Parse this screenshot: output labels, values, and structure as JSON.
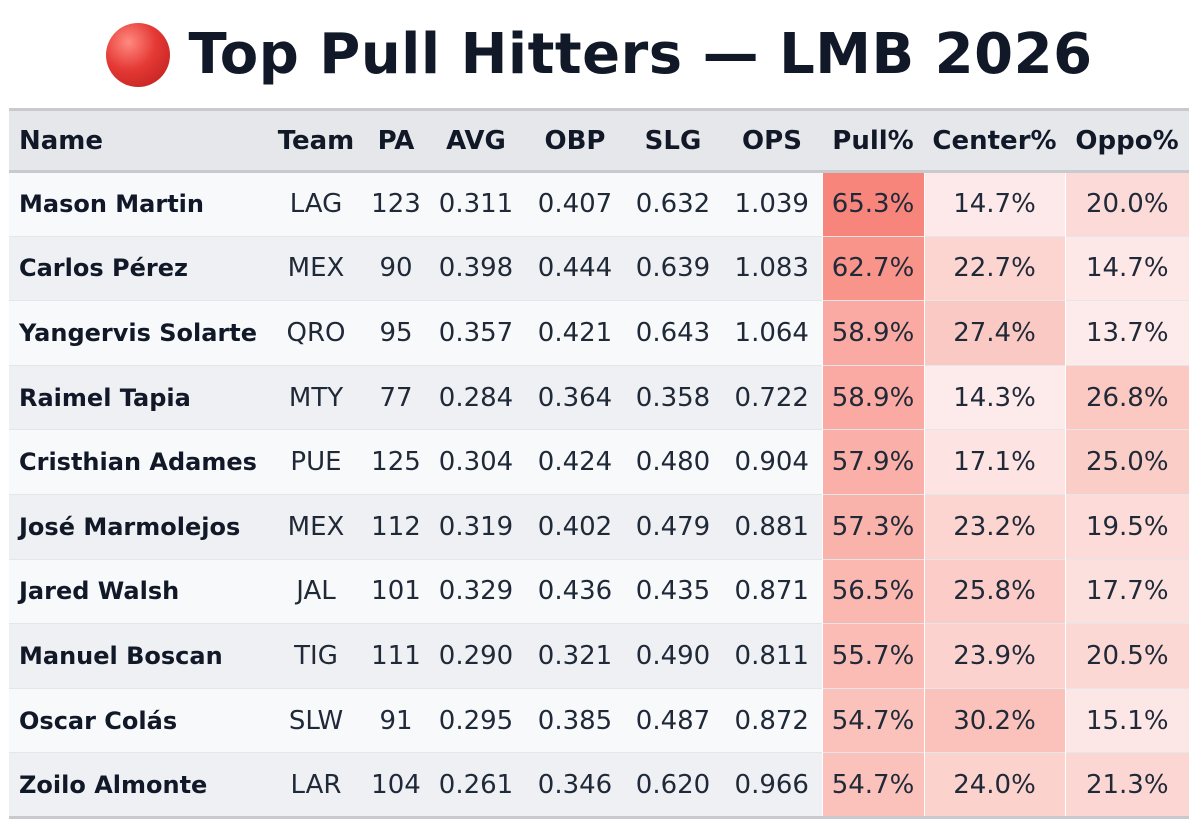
{
  "title": {
    "icon": "red-circle-icon",
    "text": "Top Pull Hitters — LMB 2026"
  },
  "colors": {
    "pull": [
      "#f8857b",
      "#fbc2bb"
    ],
    "center": [
      "#fbc2bb",
      "#fdeaea"
    ],
    "oppo": [
      "#fbc8c2",
      "#fdeaea"
    ]
  },
  "chart_data": {
    "type": "table",
    "columns": [
      "Name",
      "Team",
      "PA",
      "AVG",
      "OBP",
      "SLG",
      "OPS",
      "Pull%",
      "Center%",
      "Oppo%"
    ],
    "rows": [
      [
        "Mason Martin",
        "LAG",
        "123",
        "0.311",
        "0.407",
        "0.632",
        "1.039",
        "65.3%",
        "14.7%",
        "20.0%"
      ],
      [
        "Carlos Pérez",
        "MEX",
        "90",
        "0.398",
        "0.444",
        "0.639",
        "1.083",
        "62.7%",
        "22.7%",
        "14.7%"
      ],
      [
        "Yangervis Solarte",
        "QRO",
        "95",
        "0.357",
        "0.421",
        "0.643",
        "1.064",
        "58.9%",
        "27.4%",
        "13.7%"
      ],
      [
        "Raimel Tapia",
        "MTY",
        "77",
        "0.284",
        "0.364",
        "0.358",
        "0.722",
        "58.9%",
        "14.3%",
        "26.8%"
      ],
      [
        "Cristhian Adames",
        "PUE",
        "125",
        "0.304",
        "0.424",
        "0.480",
        "0.904",
        "57.9%",
        "17.1%",
        "25.0%"
      ],
      [
        "José Marmolejos",
        "MEX",
        "112",
        "0.319",
        "0.402",
        "0.479",
        "0.881",
        "57.3%",
        "23.2%",
        "19.5%"
      ],
      [
        "Jared Walsh",
        "JAL",
        "101",
        "0.329",
        "0.436",
        "0.435",
        "0.871",
        "56.5%",
        "25.8%",
        "17.7%"
      ],
      [
        "Manuel Boscan",
        "TIG",
        "111",
        "0.290",
        "0.321",
        "0.490",
        "0.811",
        "55.7%",
        "23.9%",
        "20.5%"
      ],
      [
        "Oscar Colás",
        "SLW",
        "91",
        "0.295",
        "0.385",
        "0.487",
        "0.872",
        "54.7%",
        "30.2%",
        "15.1%"
      ],
      [
        "Zoilo Almonte",
        "LAR",
        "104",
        "0.261",
        "0.346",
        "0.620",
        "0.966",
        "54.7%",
        "24.0%",
        "21.3%"
      ]
    ]
  }
}
